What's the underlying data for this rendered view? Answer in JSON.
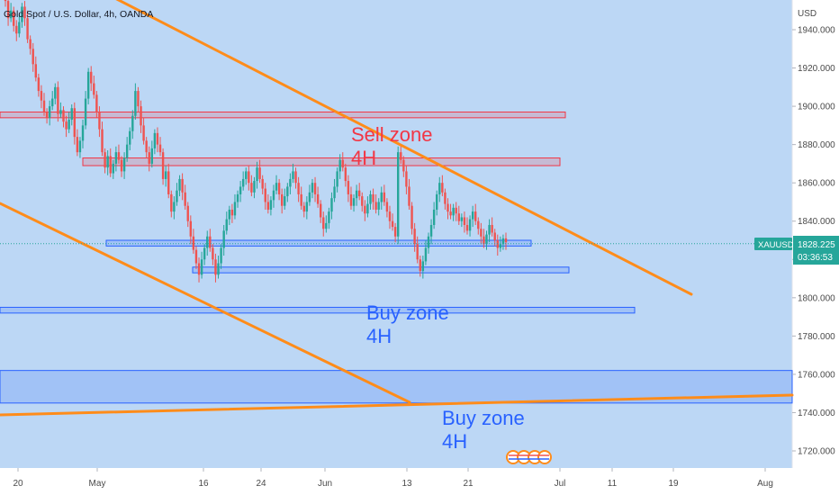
{
  "chart_data": {
    "type": "candlestick",
    "title": "Gold Spot / U.S. Dollar, 4h, OANDA",
    "currency": "USD",
    "symbol": "XAUUSD",
    "last_price": "1828.225",
    "countdown": "03:36:53",
    "y_ticks": [
      "1940.000",
      "1920.000",
      "1900.000",
      "1880.000",
      "1860.000",
      "1840.000",
      "1820.000",
      "1800.000",
      "1780.000",
      "1760.000",
      "1740.000",
      "1720.000"
    ],
    "x_ticks": [
      "20",
      "May",
      "16",
      "24",
      "Jun",
      "13",
      "21",
      "Jul",
      "11",
      "19",
      "Aug"
    ],
    "ylim": [
      1708,
      1949
    ],
    "colors": {
      "background": "#bcd7f5",
      "up": "#26a69a",
      "down": "#ef5350",
      "trendline": "#ff8c1a",
      "price_label": "#26a69a"
    },
    "zones": [
      {
        "label": "Sell zone 4H",
        "low": 1894,
        "high": 1897,
        "kind": "sell"
      },
      {
        "label": "",
        "low": 1869,
        "high": 1873,
        "kind": "sell"
      },
      {
        "label": "",
        "low": 1827,
        "high": 1830,
        "kind": "buy"
      },
      {
        "label": "",
        "low": 1813,
        "high": 1816,
        "kind": "buy"
      },
      {
        "label": "Buy zone 4H",
        "low": 1792,
        "high": 1795,
        "kind": "buy"
      },
      {
        "label": "Buy zone 4H",
        "low": 1745,
        "high": 1762,
        "kind": "buy"
      }
    ],
    "annotations": [
      {
        "text_line1": "Sell zone",
        "text_line2": "4H",
        "color": "#f23645"
      },
      {
        "text_line1": "Buy zone",
        "text_line2": "4H",
        "color": "#2962ff"
      },
      {
        "text_line1": "Buy zone",
        "text_line2": "4H",
        "color": "#2962ff"
      }
    ],
    "trendlines": [
      {
        "name": "upper-downtrend",
        "from": [
          1950,
          "start"
        ],
        "to": [
          1801,
          "end"
        ]
      },
      {
        "name": "lower-downtrend",
        "from": [
          1849,
          "start"
        ],
        "to": [
          1745,
          "mid"
        ]
      },
      {
        "name": "rising-support",
        "from": [
          1740,
          "start"
        ],
        "to": [
          1749,
          "end"
        ]
      }
    ],
    "candles": [
      1955,
      1946,
      1950,
      1942,
      1938,
      1944,
      1952,
      1946,
      1935,
      1930,
      1922,
      1915,
      1908,
      1903,
      1897,
      1894,
      1900,
      1904,
      1910,
      1896,
      1898,
      1892,
      1888,
      1893,
      1899,
      1884,
      1876,
      1882,
      1890,
      1904,
      1918,
      1912,
      1906,
      1897,
      1888,
      1876,
      1868,
      1874,
      1865,
      1870,
      1876,
      1872,
      1866,
      1873,
      1880,
      1887,
      1895,
      1908,
      1900,
      1890,
      1882,
      1876,
      1870,
      1878,
      1886,
      1880,
      1876,
      1862,
      1866,
      1854,
      1845,
      1850,
      1856,
      1862,
      1855,
      1848,
      1840,
      1832,
      1825,
      1818,
      1812,
      1820,
      1826,
      1832,
      1826,
      1820,
      1812,
      1818,
      1826,
      1835,
      1841,
      1846,
      1843,
      1850,
      1854,
      1858,
      1862,
      1866,
      1860,
      1855,
      1861,
      1868,
      1862,
      1857,
      1850,
      1846,
      1851,
      1856,
      1860,
      1854,
      1848,
      1853,
      1858,
      1862,
      1866,
      1860,
      1854,
      1848,
      1845,
      1850,
      1855,
      1860,
      1854,
      1849,
      1842,
      1836,
      1839,
      1845,
      1852,
      1858,
      1866,
      1872,
      1868,
      1861,
      1854,
      1848,
      1852,
      1856,
      1853,
      1848,
      1844,
      1849,
      1854,
      1850,
      1846,
      1850,
      1855,
      1850,
      1845,
      1840,
      1837,
      1832,
      1876,
      1872,
      1866,
      1858,
      1848,
      1836,
      1828,
      1820,
      1814,
      1819,
      1826,
      1832,
      1838,
      1846,
      1854,
      1860,
      1855,
      1849,
      1845,
      1843,
      1847,
      1844,
      1840,
      1842,
      1838,
      1835,
      1841,
      1845,
      1840,
      1836,
      1832,
      1828,
      1833,
      1838,
      1834,
      1830,
      1826,
      1828,
      1831,
      1829
    ]
  }
}
